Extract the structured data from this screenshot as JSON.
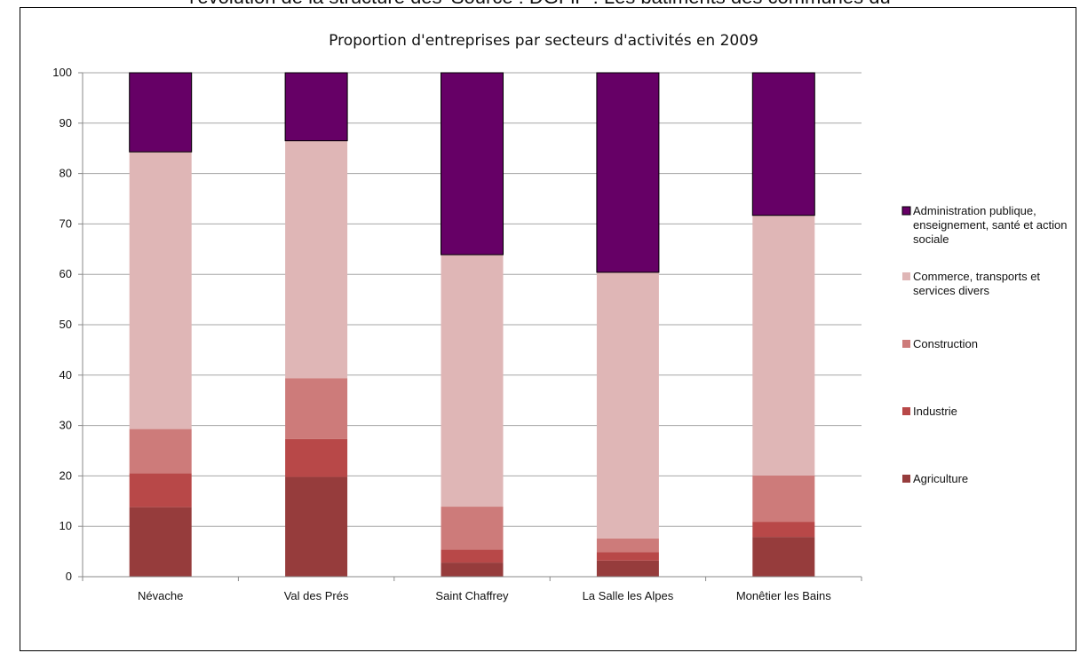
{
  "header_cut_text": "l'évolution de la structure des 'Source : DGFiP : Les bâtiments des communes du",
  "chart_data": {
    "type": "bar",
    "stacked": true,
    "title": "Proportion d'entreprises par secteurs d'activités en 2009",
    "xlabel": "",
    "ylabel": "",
    "ylim": [
      0,
      100
    ],
    "yticks": [
      0,
      10,
      20,
      30,
      40,
      50,
      60,
      70,
      80,
      90,
      100
    ],
    "grid": true,
    "legend_position": "right",
    "categories": [
      "Névache",
      "Val des Prés",
      "Saint Chaffrey",
      "La Salle les Alpes",
      "Monêtier les Bains"
    ],
    "series": [
      {
        "name": "Agriculture",
        "color": "#963c3c",
        "values": [
          13.8,
          19.8,
          2.8,
          3.2,
          7.9
        ]
      },
      {
        "name": "Industrie",
        "color": "#b84848",
        "values": [
          6.7,
          7.5,
          2.6,
          1.7,
          3.0
        ]
      },
      {
        "name": "Construction",
        "color": "#cd7b7a",
        "values": [
          8.8,
          12.1,
          8.5,
          2.7,
          9.2
        ]
      },
      {
        "name": "Commerce, transports et services divers",
        "color": "#dfb6b6",
        "values": [
          55.0,
          47.1,
          50.0,
          52.8,
          51.6
        ]
      },
      {
        "name": "Administration publique, enseignement, santé et action sociale",
        "color": "#660066",
        "values": [
          15.7,
          13.5,
          36.1,
          39.6,
          28.3
        ]
      }
    ],
    "legend_order": [
      "Administration publique, enseignement, santé et action sociale",
      "Commerce, transports et services divers",
      "Construction",
      "Industrie",
      "Agriculture"
    ]
  }
}
